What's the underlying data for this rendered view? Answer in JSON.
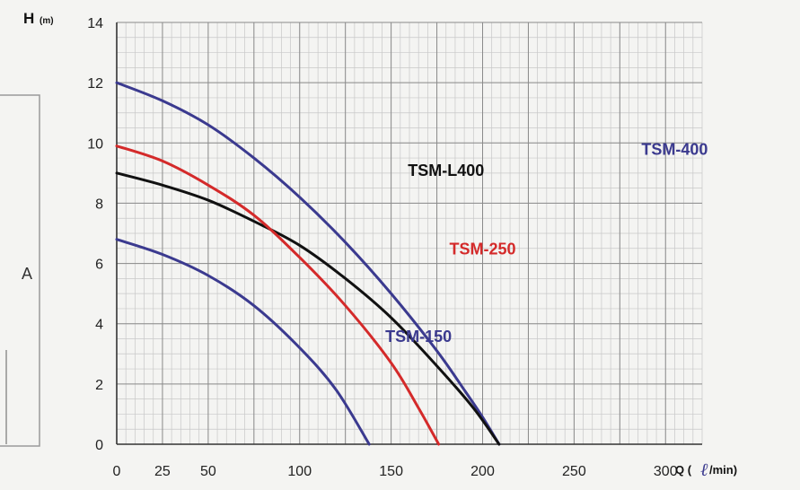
{
  "chart_data": {
    "type": "line",
    "ylabel_main": "H",
    "ylabel_unit": "(m)",
    "xlabel_prefix": "Q (",
    "xlabel_symbol": "ℓ",
    "xlabel_suffix": " /min)",
    "side_label": "A",
    "xlim": [
      0,
      320
    ],
    "ylim": [
      0,
      14
    ],
    "x_ticks": [
      0,
      25,
      50,
      75,
      100,
      125,
      150,
      175,
      200,
      225,
      250,
      275,
      300
    ],
    "x_tick_labels": [
      "0",
      "25",
      "50",
      "100",
      "150",
      "200",
      "250",
      "300"
    ],
    "x_tick_label_values": [
      0,
      25,
      50,
      100,
      150,
      200,
      250,
      300
    ],
    "y_ticks": [
      0,
      2,
      4,
      6,
      8,
      10,
      12,
      14
    ],
    "y_tick_labels": [
      "0",
      "2",
      "4",
      "6",
      "8",
      "10",
      "12",
      "14"
    ],
    "grid": true,
    "series": [
      {
        "name": "TSM-400",
        "color": "#3b3a8f",
        "label_at": [
          305,
          9.6
        ],
        "x": [
          0,
          25,
          50,
          75,
          100,
          125,
          150,
          175,
          190,
          200,
          209
        ],
        "y": [
          12.0,
          11.4,
          10.6,
          9.5,
          8.2,
          6.7,
          5.0,
          3.1,
          1.8,
          0.9,
          0
        ]
      },
      {
        "name": "TSM-L400",
        "color": "#111111",
        "label_at": [
          180,
          8.9
        ],
        "x": [
          0,
          25,
          50,
          75,
          100,
          125,
          150,
          175,
          195,
          209
        ],
        "y": [
          9.0,
          8.6,
          8.1,
          7.4,
          6.6,
          5.5,
          4.2,
          2.6,
          1.2,
          0
        ]
      },
      {
        "name": "TSM-250",
        "color": "#d42a2a",
        "label_at": [
          200,
          6.3
        ],
        "x": [
          0,
          25,
          50,
          75,
          100,
          125,
          150,
          165,
          176
        ],
        "y": [
          9.9,
          9.4,
          8.6,
          7.6,
          6.2,
          4.6,
          2.7,
          1.2,
          0
        ]
      },
      {
        "name": "TSM-150",
        "color": "#3b3a8f",
        "label_at": [
          165,
          3.4
        ],
        "x": [
          0,
          25,
          50,
          75,
          100,
          120,
          138
        ],
        "y": [
          6.8,
          6.3,
          5.6,
          4.6,
          3.2,
          1.8,
          0
        ]
      }
    ]
  }
}
